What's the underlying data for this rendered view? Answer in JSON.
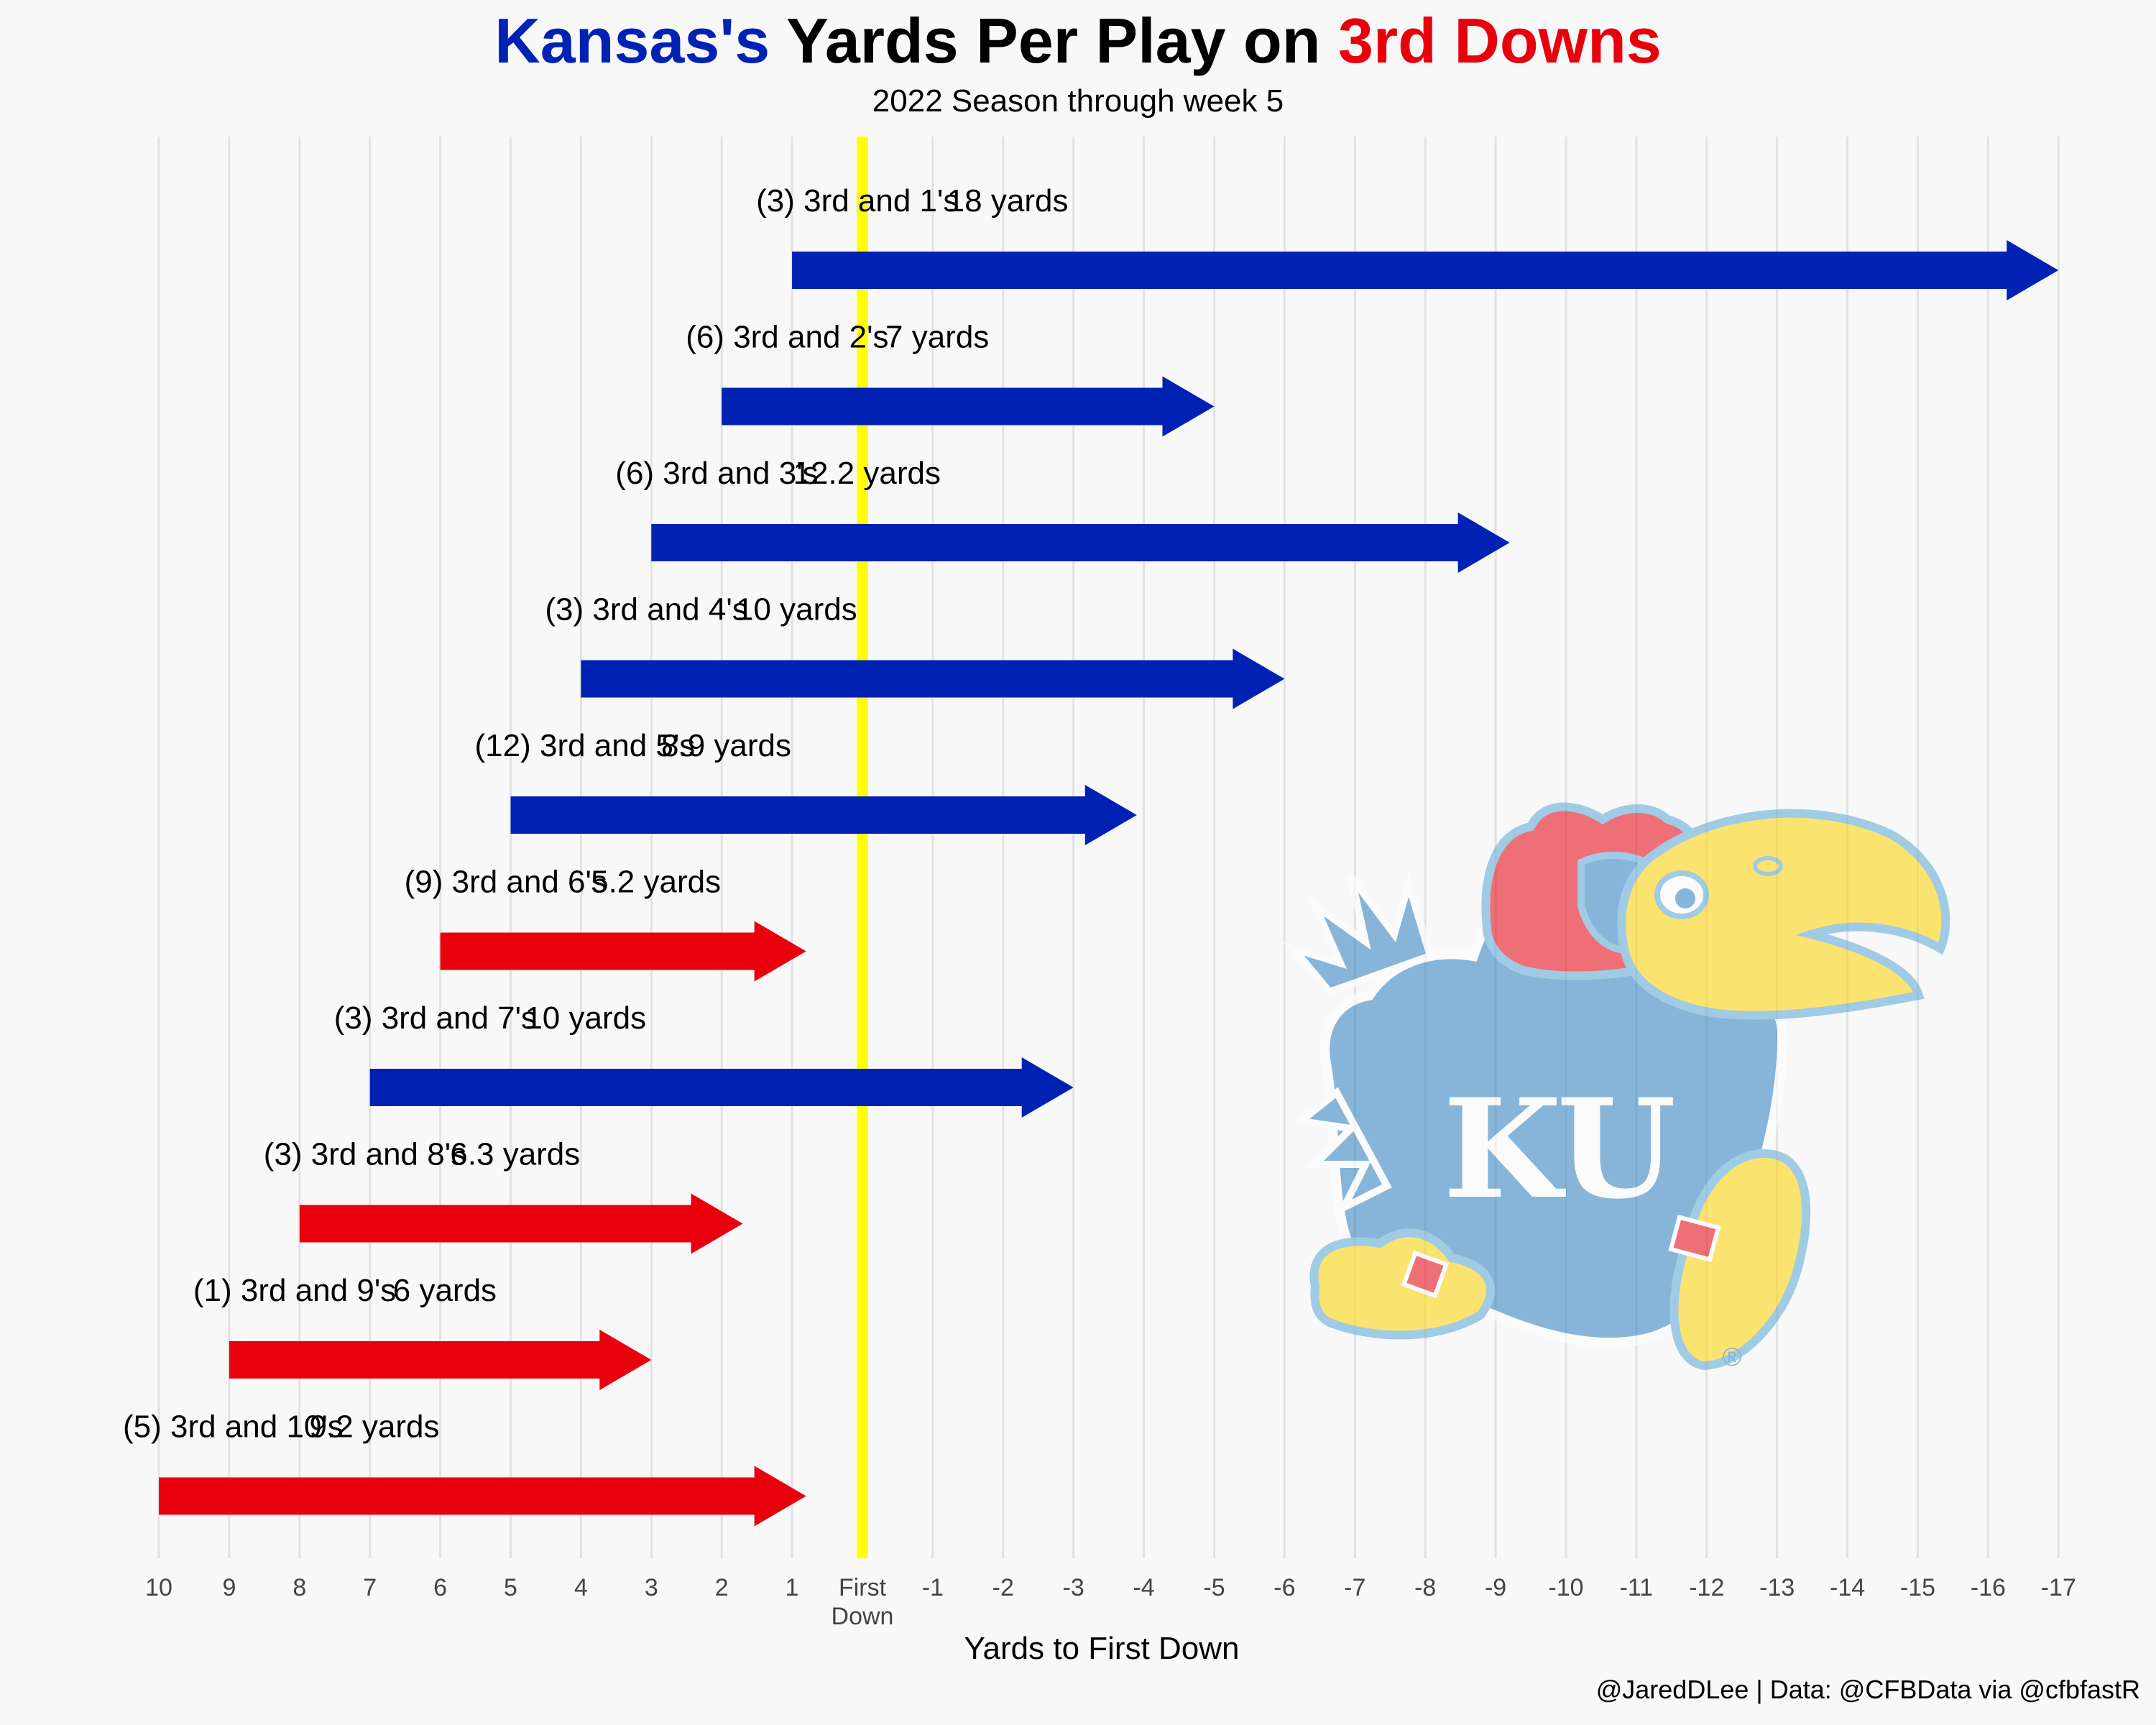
{
  "title": {
    "part1": "Kansas's",
    "part2": " Yards Per Play on ",
    "part3": "3rd Downs",
    "color_part1": "#0022b4",
    "color_part3": "#e8000d"
  },
  "subtitle": "2022 Season through week 5",
  "caption": "@JaredDLee | Data: @CFBData via @cfbfastR",
  "logo": {
    "icon": "kansas-jayhawk-logo",
    "text": "KU",
    "registered": "®"
  },
  "colors": {
    "success": "#0022b4",
    "fail": "#e8000d",
    "first_down_line": "#ffff00",
    "grid": "#e2e2e2",
    "background": "#f8f8f8"
  },
  "chart_data": {
    "type": "arrow",
    "title": "Kansas's Yards Per Play on 3rd Downs",
    "subtitle": "2022 Season through week 5",
    "xlabel": "Yards to First Down",
    "ylabel": "",
    "x_reversed": true,
    "xlim": [
      10,
      -17
    ],
    "ticks": [
      {
        "value": 10,
        "label": "10"
      },
      {
        "value": 9,
        "label": "9"
      },
      {
        "value": 8,
        "label": "8"
      },
      {
        "value": 7,
        "label": "7"
      },
      {
        "value": 6,
        "label": "6"
      },
      {
        "value": 5,
        "label": "5"
      },
      {
        "value": 4,
        "label": "4"
      },
      {
        "value": 3,
        "label": "3"
      },
      {
        "value": 2,
        "label": "2"
      },
      {
        "value": 1,
        "label": "1"
      },
      {
        "value": 0,
        "label": "First\nDown"
      },
      {
        "value": -1,
        "label": "-1"
      },
      {
        "value": -2,
        "label": "-2"
      },
      {
        "value": -3,
        "label": "-3"
      },
      {
        "value": -4,
        "label": "-4"
      },
      {
        "value": -5,
        "label": "-5"
      },
      {
        "value": -6,
        "label": "-6"
      },
      {
        "value": -7,
        "label": "-7"
      },
      {
        "value": -8,
        "label": "-8"
      },
      {
        "value": -9,
        "label": "-9"
      },
      {
        "value": -10,
        "label": "-10"
      },
      {
        "value": -11,
        "label": "-11"
      },
      {
        "value": -12,
        "label": "-12"
      },
      {
        "value": -13,
        "label": "-13"
      },
      {
        "value": -14,
        "label": "-14"
      },
      {
        "value": -15,
        "label": "-15"
      },
      {
        "value": -16,
        "label": "-16"
      },
      {
        "value": -17,
        "label": "-17"
      }
    ],
    "first_down_line": 0,
    "grid": true,
    "rows": [
      {
        "distance": 1,
        "count": 3,
        "label": "(3) 3rd and 1's",
        "yards": 18,
        "yards_label": "18 yards",
        "converted": true
      },
      {
        "distance": 2,
        "count": 6,
        "label": "(6) 3rd and 2's",
        "yards": 7,
        "yards_label": "7 yards",
        "converted": true
      },
      {
        "distance": 3,
        "count": 6,
        "label": "(6) 3rd and 3's",
        "yards": 12.2,
        "yards_label": "12.2 yards",
        "converted": true
      },
      {
        "distance": 4,
        "count": 3,
        "label": "(3) 3rd and 4's",
        "yards": 10,
        "yards_label": "10 yards",
        "converted": true
      },
      {
        "distance": 5,
        "count": 12,
        "label": "(12) 3rd and 5's",
        "yards": 8.9,
        "yards_label": "8.9 yards",
        "converted": true
      },
      {
        "distance": 6,
        "count": 9,
        "label": "(9) 3rd and 6's",
        "yards": 5.2,
        "yards_label": "5.2 yards",
        "converted": false
      },
      {
        "distance": 7,
        "count": 3,
        "label": "(3) 3rd and 7's",
        "yards": 10,
        "yards_label": "10 yards",
        "converted": true
      },
      {
        "distance": 8,
        "count": 3,
        "label": "(3) 3rd and 8's",
        "yards": 6.3,
        "yards_label": "6.3 yards",
        "converted": false
      },
      {
        "distance": 9,
        "count": 1,
        "label": "(1) 3rd and 9's",
        "yards": 6,
        "yards_label": "6 yards",
        "converted": false
      },
      {
        "distance": 10,
        "count": 5,
        "label": "(5) 3rd and 10's",
        "yards": 9.2,
        "yards_label": "9.2 yards",
        "converted": false
      }
    ]
  }
}
